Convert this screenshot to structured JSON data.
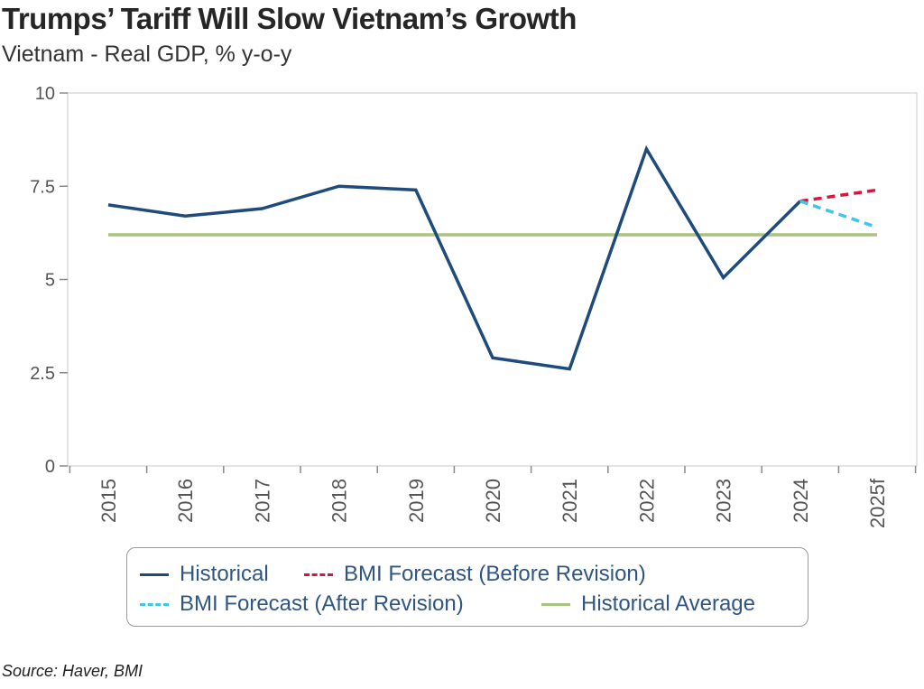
{
  "title": "Trumps’ Tariff Will Slow Vietnam’s Growth",
  "subtitle": "Vietnam - Real GDP, % y-o-y",
  "source": "Source: Haver, BMI",
  "chart_data": {
    "type": "line",
    "categories": [
      "2015",
      "2016",
      "2017",
      "2018",
      "2019",
      "2020",
      "2021",
      "2022",
      "2023",
      "2024",
      "2025f"
    ],
    "ylim": [
      0,
      10
    ],
    "yticks": [
      0,
      2.5,
      5,
      7.5,
      10
    ],
    "ytick_labels": [
      "0",
      "2.5",
      "5",
      "7.5",
      "10"
    ],
    "grid": false,
    "legend_position": "bottom",
    "series": [
      {
        "name": "Historical",
        "color": "#1f4a7c",
        "dash": "solid",
        "values": [
          7.0,
          6.7,
          6.9,
          7.5,
          7.4,
          2.9,
          2.6,
          8.5,
          5.05,
          7.1,
          null
        ]
      },
      {
        "name": "BMI Forecast (Before Revision)",
        "color": "#d6163f",
        "dash": "dashed",
        "values": [
          null,
          null,
          null,
          null,
          null,
          null,
          null,
          null,
          null,
          7.1,
          7.4
        ]
      },
      {
        "name": "BMI Forecast (After Revision)",
        "color": "#3fc5f0",
        "dash": "dashed",
        "values": [
          null,
          null,
          null,
          null,
          null,
          null,
          null,
          null,
          null,
          7.1,
          6.4
        ]
      },
      {
        "name": "Historical Average",
        "color": "#a9c47f",
        "dash": "solid",
        "values": [
          6.2,
          6.2,
          6.2,
          6.2,
          6.2,
          6.2,
          6.2,
          6.2,
          6.2,
          6.2,
          6.2
        ]
      }
    ]
  }
}
